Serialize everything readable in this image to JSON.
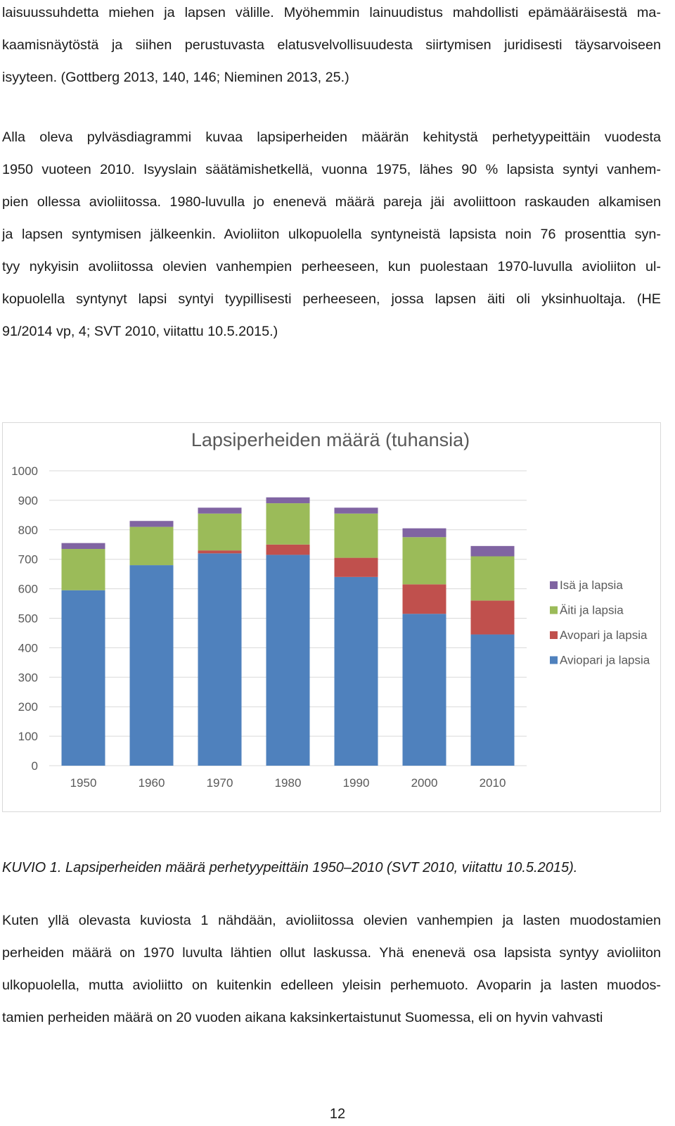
{
  "paragraphs": {
    "p1": [
      "laisuussuhdetta miehen ja lapsen välille. Myöhemmin lainuudistus mahdollisti epämääräisestä ma-",
      "kaamisnäytöstä ja siihen perustuvasta elatusvelvollisuudesta siirtymisen juridisesti täysarvoiseen",
      "isyyteen. (Gottberg 2013, 140, 146; Nieminen 2013, 25.)"
    ],
    "p2": [
      "Alla oleva pylväsdiagrammi kuvaa lapsiperheiden määrän kehitystä perhetyypeittäin vuodesta",
      "1950 vuoteen 2010. Isyyslain säätämishetkellä, vuonna 1975, lähes 90 % lapsista syntyi vanhem-",
      "pien ollessa avioliitossa. 1980-luvulla jo enenevä määrä pareja jäi avoliittoon raskauden alkamisen",
      "ja lapsen syntymisen jälkeenkin. Avioliiton ulkopuolella syntyneistä lapsista noin 76 prosenttia syn-",
      "tyy nykyisin avoliitossa olevien vanhempien perheeseen, kun puolestaan 1970-luvulla avioliiton ul-",
      "kopuolella syntynyt lapsi syntyi tyypillisesti perheeseen, jossa lapsen äiti oli yksinhuoltaja. (HE",
      "91/2014 vp, 4; SVT 2010, viitattu 10.5.2015.)"
    ],
    "p3": [
      "Kuten yllä olevasta kuviosta 1 nähdään, avioliitossa olevien vanhempien ja lasten muodostamien",
      "perheiden määrä on 1970 luvulta lähtien ollut laskussa.  Yhä enenevä osa lapsista syntyy avioliiton",
      "ulkopuolella, mutta avioliitto on kuitenkin edelleen yleisin perhemuoto. Avoparin ja lasten muodos-",
      "tamien perheiden määrä on 20 vuoden aikana kaksinkertaistunut Suomessa, eli on hyvin vahvasti"
    ]
  },
  "caption": "KUVIO 1. Lapsiperheiden määrä perhetyypeittäin 1950–2010 (SVT 2010, viitattu 10.5.2015).",
  "page_number": "12",
  "chart_data": {
    "type": "bar",
    "stacked": true,
    "title": "Lapsiperheiden määrä (tuhansia)",
    "categories": [
      "1950",
      "1960",
      "1970",
      "1980",
      "1990",
      "2000",
      "2010"
    ],
    "series": [
      {
        "name": "Aviopari ja lapsia",
        "color": "#4f81bd",
        "values": [
          595,
          680,
          720,
          715,
          640,
          515,
          445
        ]
      },
      {
        "name": "Avopari ja lapsia",
        "color": "#c0504d",
        "values": [
          0,
          0,
          10,
          35,
          65,
          100,
          115
        ]
      },
      {
        "name": "Äiti ja lapsia",
        "color": "#9bbb59",
        "values": [
          140,
          130,
          125,
          140,
          150,
          160,
          150
        ]
      },
      {
        "name": "Isä ja lapsia",
        "color": "#8064a2",
        "values": [
          20,
          20,
          20,
          20,
          20,
          30,
          35
        ]
      }
    ],
    "ylim": [
      0,
      1000
    ],
    "yticks": [
      "0",
      "100",
      "200",
      "300",
      "400",
      "500",
      "600",
      "700",
      "800",
      "900",
      "1000"
    ],
    "grid": true,
    "legend_position": "right",
    "legend_order": [
      "Isä ja lapsia",
      "Äiti ja lapsia",
      "Avopari ja lapsia",
      "Aviopari ja lapsia"
    ]
  }
}
